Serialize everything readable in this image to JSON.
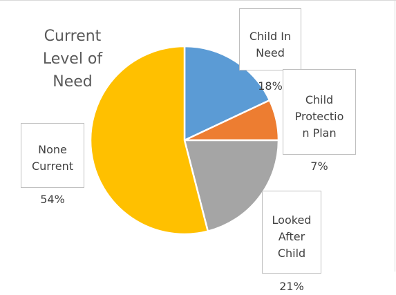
{
  "chart_data": {
    "type": "pie",
    "title": "Current\nLevel of\nNeed",
    "slices": [
      {
        "label": "Child In\nNeed",
        "value": 18,
        "value_text": "18%",
        "color": "#5b9bd5"
      },
      {
        "label": "Child\nProtectio\nn Plan",
        "value": 7,
        "value_text": "7%",
        "color": "#ed7d31"
      },
      {
        "label": "Looked\nAfter\nChild",
        "value": 21,
        "value_text": "21%",
        "color": "#a5a5a5"
      },
      {
        "label": "None\nCurrent",
        "value": 54,
        "value_text": "54%",
        "color": "#ffc000"
      }
    ]
  }
}
